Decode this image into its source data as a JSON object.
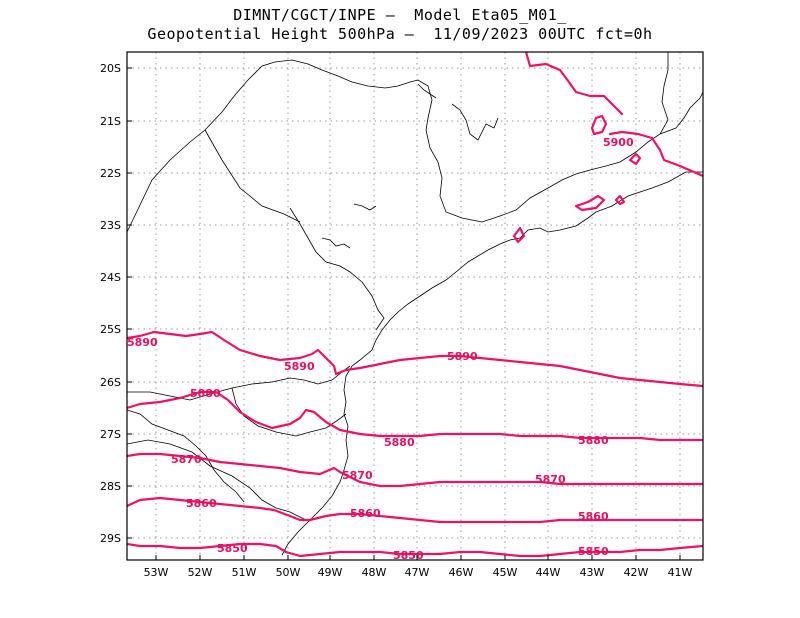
{
  "title": {
    "line1": "DIMNT/CGCT/INPE –  Model Eta05_M01_",
    "line2": "Geopotential Height 500hPa –  11/09/2023 00UTC fct=0h"
  },
  "axes": {
    "lat_labels": [
      "20S",
      "21S",
      "22S",
      "23S",
      "24S",
      "25S",
      "26S",
      "27S",
      "28S",
      "29S"
    ],
    "lon_labels": [
      "53W",
      "52W",
      "51W",
      "50W",
      "49W",
      "48W",
      "47W",
      "46W",
      "45W",
      "44W",
      "43W",
      "42W",
      "41W"
    ]
  },
  "colors": {
    "contour": "#ee1166",
    "border": "#000000",
    "grid": "#999999"
  },
  "contours": [
    {
      "value": 5900,
      "labels": [
        "5900"
      ]
    },
    {
      "value": 5890,
      "labels": [
        "5890",
        "5890",
        "5890"
      ]
    },
    {
      "value": 5880,
      "labels": [
        "5880",
        "5880",
        "5880"
      ]
    },
    {
      "value": 5870,
      "labels": [
        "5870",
        "5870",
        "5870"
      ]
    },
    {
      "value": 5860,
      "labels": [
        "5860",
        "5860",
        "5860"
      ]
    },
    {
      "value": 5850,
      "labels": [
        "5850",
        "5850",
        "5850"
      ]
    }
  ]
}
